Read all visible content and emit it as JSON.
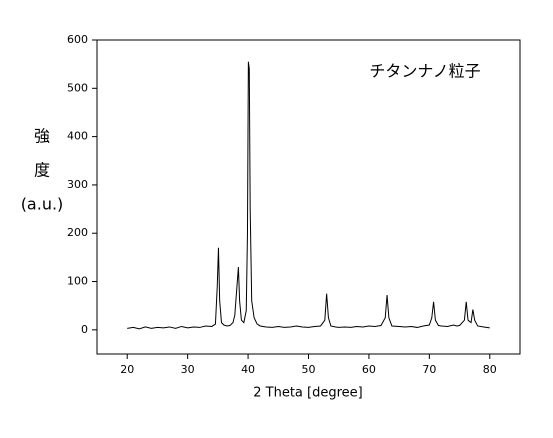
{
  "chart_data": {
    "type": "line",
    "annotation": "チタンナノ粒子",
    "xlabel": "2 Theta [degree]",
    "ylabel": [
      "強",
      "度",
      "(a.u.)"
    ],
    "xlim": [
      15,
      85
    ],
    "ylim": [
      -50,
      600
    ],
    "xticks": [
      20,
      30,
      40,
      50,
      60,
      70,
      80
    ],
    "yticks": [
      0,
      100,
      200,
      300,
      400,
      500,
      600
    ],
    "color": "#000000",
    "x": [
      20,
      21,
      22,
      23,
      24,
      25,
      26,
      27,
      28,
      29,
      30,
      31,
      32,
      33,
      34,
      34.6,
      34.9,
      35.1,
      35.3,
      35.6,
      36,
      36.5,
      37,
      37.5,
      37.8,
      38.1,
      38.4,
      38.6,
      38.9,
      39.3,
      39.7,
      39.9,
      40.05,
      40.2,
      40.35,
      40.6,
      41,
      41.5,
      42,
      43,
      44,
      45,
      46,
      47,
      48,
      49,
      50,
      51,
      52,
      52.7,
      53.0,
      53.3,
      53.7,
      54.5,
      55,
      56,
      57,
      58,
      59,
      60,
      61,
      62,
      62.7,
      63.0,
      63.3,
      63.8,
      65,
      66,
      67,
      68,
      69,
      70,
      70.4,
      70.7,
      71,
      71.5,
      72,
      73,
      74,
      74.5,
      75,
      75.8,
      76.1,
      76.4,
      76.9,
      77.2,
      77.5,
      78,
      79,
      80
    ],
    "values": [
      3,
      5,
      2,
      6,
      3,
      5,
      4,
      6,
      3,
      7,
      4,
      6,
      5,
      8,
      7,
      12,
      90,
      170,
      60,
      15,
      10,
      8,
      9,
      15,
      30,
      80,
      130,
      60,
      20,
      15,
      40,
      200,
      555,
      540,
      250,
      60,
      25,
      12,
      8,
      6,
      5,
      7,
      5,
      6,
      8,
      6,
      5,
      7,
      8,
      20,
      75,
      25,
      8,
      6,
      5,
      6,
      5,
      7,
      6,
      8,
      7,
      9,
      25,
      72,
      25,
      8,
      7,
      6,
      7,
      5,
      8,
      10,
      25,
      58,
      20,
      9,
      8,
      7,
      10,
      8,
      9,
      20,
      58,
      20,
      15,
      42,
      20,
      8,
      6,
      4
    ]
  }
}
